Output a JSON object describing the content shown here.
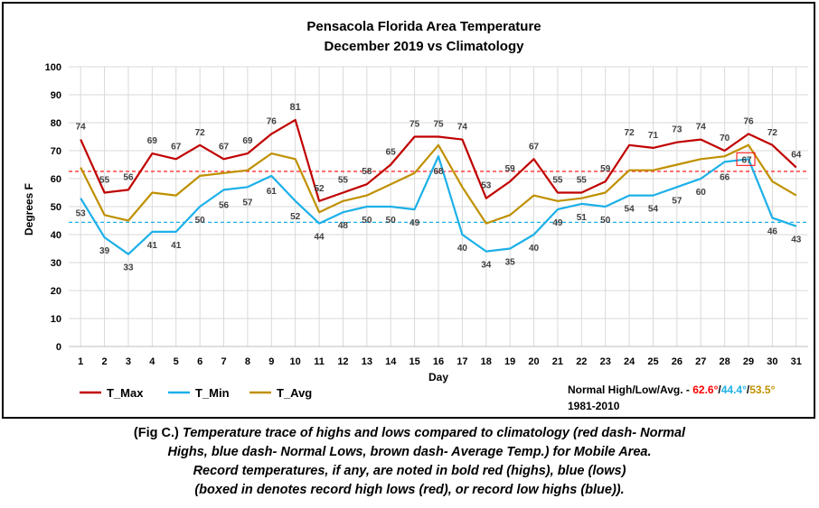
{
  "chart_data": {
    "type": "line",
    "title": [
      "Pensacola Florida Area Temperature",
      "December 2019 vs Climatology"
    ],
    "xlabel": "Day",
    "ylabel": "Degrees F",
    "ylim": [
      0,
      100
    ],
    "yticks": [
      0,
      10,
      20,
      30,
      40,
      50,
      60,
      70,
      80,
      90,
      100
    ],
    "x": [
      1,
      2,
      3,
      4,
      5,
      6,
      7,
      8,
      9,
      10,
      11,
      12,
      13,
      14,
      15,
      16,
      17,
      18,
      19,
      20,
      21,
      22,
      23,
      24,
      25,
      26,
      27,
      28,
      29,
      30,
      31
    ],
    "grid": true,
    "legend_position": "bottom-left",
    "series": [
      {
        "name": "T_Max",
        "color": "#c00000",
        "values": [
          74,
          55,
          56,
          69,
          67,
          72,
          67,
          69,
          76,
          81,
          52,
          55,
          58,
          65,
          75,
          75,
          74,
          53,
          59,
          67,
          55,
          55,
          59,
          72,
          71,
          73,
          74,
          70,
          76,
          72,
          64
        ],
        "labels": [
          "74",
          "55",
          "56",
          "69",
          "67",
          "72",
          "67",
          "69",
          "76",
          "81",
          "52",
          "55",
          "58",
          "65",
          "75",
          "75",
          "74",
          "53",
          "59",
          "67",
          "55",
          "55",
          "59",
          "72",
          "71",
          "73",
          "74",
          "70",
          "76",
          "72",
          "64"
        ],
        "record_days": [
          10
        ]
      },
      {
        "name": "T_Min",
        "color": "#1cb0e8",
        "values": [
          53,
          39,
          33,
          41,
          41,
          50,
          56,
          57,
          61,
          52,
          44,
          48,
          50,
          50,
          49,
          68,
          40,
          34,
          35,
          40,
          49,
          51,
          50,
          54,
          54,
          57,
          60,
          66,
          67,
          46,
          43
        ],
        "labels": [
          "53",
          "39",
          "33",
          "41",
          "41",
          "50",
          "56",
          "57",
          "61",
          "52",
          "44",
          "48",
          "50",
          "50",
          "49",
          "68",
          "40",
          "34",
          "35",
          "40",
          "49",
          "51",
          "50",
          "54",
          "54",
          "57",
          "60",
          "66",
          "67",
          "46",
          "43"
        ],
        "boxed_days": [
          29
        ]
      },
      {
        "name": "T_Avg",
        "color": "#bf9000",
        "values": [
          64,
          47,
          45,
          55,
          54,
          61,
          62,
          63,
          69,
          67,
          48,
          52,
          54,
          58,
          62,
          72,
          57,
          44,
          47,
          54,
          52,
          53,
          55,
          63,
          63,
          65,
          67,
          68,
          72,
          59,
          54
        ]
      }
    ],
    "reference_lines": [
      {
        "value": 62.6,
        "color": "#ff3333",
        "style": "dashed"
      },
      {
        "value": 44.4,
        "color": "#1cb0e8",
        "style": "dashed"
      }
    ]
  },
  "normals": {
    "prefix": "Normal High/Low/Avg. - ",
    "high": "62.6°",
    "sep1": "/",
    "low": "44.4°",
    "sep2": "/",
    "avg": "53.5°",
    "period": "1981-2010",
    "colors": {
      "high": "#ff0000",
      "low": "#1cb0e8",
      "avg": "#bf9000"
    }
  },
  "caption": {
    "lead": "(Fig C.) ",
    "line1": "Temperature trace of highs and lows compared to climatology (red dash- Normal",
    "line2": "Highs, blue dash- Normal Lows, brown dash- Average Temp.) for Mobile Area.",
    "line3": "Record temperatures, if any, are noted in bold red (highs), blue (lows)",
    "line4": "(boxed in denotes record high lows (red), or record low highs (blue))."
  }
}
